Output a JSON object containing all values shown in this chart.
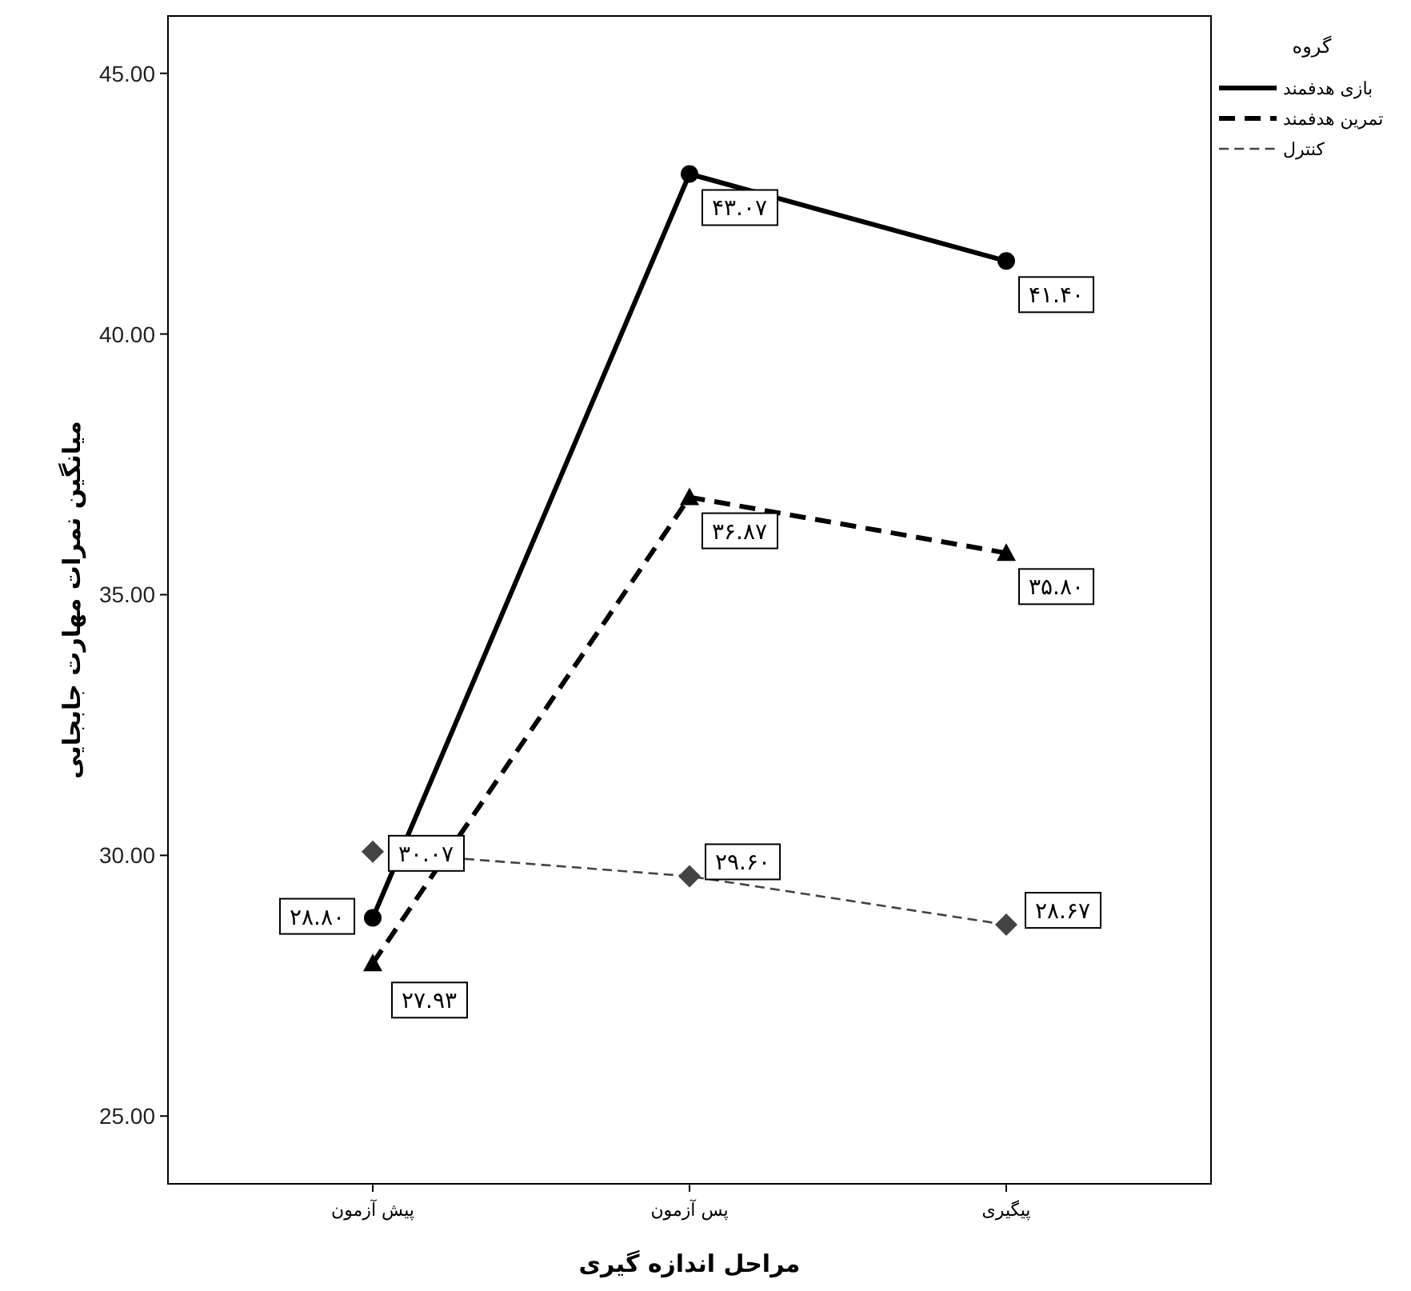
{
  "chart_data": {
    "type": "line",
    "xlabel": "مراحل اندازه گیری",
    "ylabel": "میانگین نمرات مهارت جابجایی",
    "legend_title": "گروه",
    "categories": [
      "پیش آزمون",
      "پس آزمون",
      "پیگیری"
    ],
    "series": [
      {
        "name": "بازی هدفمند",
        "color": "#000000",
        "values": [
          28.8,
          43.07,
          41.4
        ],
        "marker": "circle",
        "line_style": "solid",
        "value_labels": [
          "۲۸.۸۰",
          "۴۳.۰۷",
          "۴۱.۴۰"
        ]
      },
      {
        "name": "تمرین هدفمند",
        "color": "#000000",
        "values": [
          27.93,
          36.87,
          35.8
        ],
        "marker": "triangle",
        "line_style": "dashed",
        "value_labels": [
          "۲۷.۹۳",
          "۳۶.۸۷",
          "۳۵.۸۰"
        ]
      },
      {
        "name": "کنترل",
        "color": "#444444",
        "values": [
          30.07,
          29.6,
          28.67
        ],
        "marker": "diamond",
        "line_style": "dashed",
        "value_labels": [
          "۳۰.۰۷",
          "۲۹.۶۰",
          "۲۸.۶۷"
        ]
      }
    ],
    "ylim": [
      23.7,
      46.1
    ],
    "yticks": [
      {
        "value": 25,
        "label": "25.00"
      },
      {
        "value": 30,
        "label": "30.00"
      },
      {
        "value": 35,
        "label": "35.00"
      },
      {
        "value": 40,
        "label": "40.00"
      },
      {
        "value": 45,
        "label": "45.00"
      }
    ],
    "grid": false,
    "legend": "top right"
  }
}
